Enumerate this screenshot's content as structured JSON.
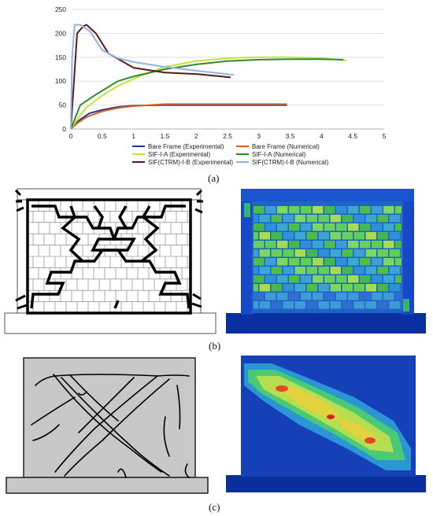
{
  "labels": {
    "a": "(a)",
    "b": "(b)",
    "c": "(c)"
  },
  "chart_data": {
    "type": "line",
    "title": "",
    "xlabel": "",
    "ylabel": "",
    "xlim": [
      0,
      5
    ],
    "ylim": [
      0,
      250
    ],
    "xticks": [
      0,
      0.5,
      1,
      1.5,
      2,
      2.5,
      3,
      3.5,
      4,
      4.5,
      5
    ],
    "yticks": [
      0,
      50,
      100,
      150,
      200,
      250
    ],
    "grid": "horizontal",
    "legend_position": "bottom",
    "series": [
      {
        "name": "Bare Frame (Experimental)",
        "color": "#1f3c8f",
        "x": [
          0,
          0.05,
          0.15,
          0.3,
          0.5,
          0.75,
          1.0,
          1.5,
          2.0,
          2.5,
          3.0,
          3.45
        ],
        "y": [
          0,
          8,
          20,
          33,
          40,
          46,
          49,
          50,
          50,
          50,
          50,
          50
        ]
      },
      {
        "name": "Bare Frame (Numerical)",
        "color": "#d9621c",
        "x": [
          0,
          0.1,
          0.25,
          0.5,
          0.75,
          1.0,
          1.5,
          2.0,
          2.5,
          3.0,
          3.45
        ],
        "y": [
          0,
          12,
          25,
          37,
          44,
          48,
          52,
          52,
          52,
          52,
          52
        ]
      },
      {
        "name": "SIF-I-A (Experimental)",
        "color": "#c9e234",
        "x": [
          0,
          0.1,
          0.25,
          0.5,
          0.75,
          1.0,
          1.25,
          1.5,
          2.0,
          2.5,
          3.0,
          3.5,
          4.0,
          4.4
        ],
        "y": [
          0,
          20,
          45,
          70,
          90,
          105,
          118,
          130,
          142,
          148,
          150,
          150,
          148,
          143
        ]
      },
      {
        "name": "SIF-I-A (Numerical)",
        "color": "#2e8b2e",
        "x": [
          0,
          0.15,
          0.4,
          0.75,
          1.0,
          1.5,
          2.0,
          2.5,
          3.0,
          3.5,
          4.0,
          4.35
        ],
        "y": [
          0,
          50,
          72,
          100,
          110,
          125,
          135,
          142,
          145,
          146,
          146,
          145
        ]
      },
      {
        "name": "SIF(CTRM)-I-B (Experimental)",
        "color": "#5a1a1a",
        "x": [
          0,
          0.05,
          0.1,
          0.2,
          0.25,
          0.4,
          0.6,
          1.0,
          1.5,
          2.0,
          2.55
        ],
        "y": [
          0,
          100,
          200,
          215,
          218,
          200,
          158,
          128,
          118,
          115,
          108
        ]
      },
      {
        "name": "SIF(CTRM)-I-B (Numerical)",
        "color": "#8fb3e8",
        "x": [
          0,
          0.02,
          0.06,
          0.15,
          0.3,
          0.5,
          0.75,
          1.0,
          1.5,
          2.0,
          2.6
        ],
        "y": [
          0,
          150,
          218,
          218,
          205,
          165,
          148,
          140,
          130,
          122,
          113
        ]
      }
    ]
  }
}
